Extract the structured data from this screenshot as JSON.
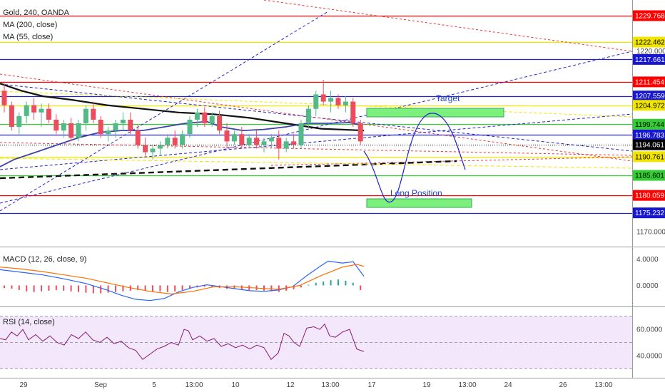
{
  "header": {
    "title": "Gold, 240, OANDA",
    "ma200": "MA (200, close)",
    "ma55": "MA (55, close)"
  },
  "annotations": {
    "target": "Target",
    "long_position": "Long Position"
  },
  "colors": {
    "up": "#53b987",
    "down": "#eb4d5c",
    "red_line": "#ff0000",
    "yellow_line": "#f2e600",
    "blue_line": "#2222cc",
    "green_line": "#33cc33",
    "ma200": "#111111",
    "ma55": "#3b44a8",
    "box_fill": "#7cf07c",
    "macd_line": "#2962ff",
    "signal_line": "#ff6d00",
    "rsi_line": "#8a1a72",
    "rsi_bg": "#f3e8fb"
  },
  "chart_data": [
    {
      "type": "candlestick",
      "title": "Gold, 240, OANDA",
      "x_ticks": [
        "29",
        "Sep",
        "5",
        "13:00",
        "10",
        "12",
        "13:00",
        "17",
        "19",
        "13:00",
        "24",
        "26",
        "13:00"
      ],
      "y_ticks": [
        1170.0,
        1220.0
      ],
      "y_tick_labels": [
        "1170.000",
        "1220.000"
      ],
      "ylim": [
        1165.9,
        1234.1
      ],
      "price_levels": [
        {
          "value": 1229.768,
          "label": "1229.768",
          "color": "red"
        },
        {
          "value": 1222.462,
          "label": "1222.462",
          "color": "yellow"
        },
        {
          "value": 1217.661,
          "label": "1217.661",
          "color": "blue"
        },
        {
          "value": 1211.454,
          "label": "1211.454",
          "color": "red"
        },
        {
          "value": 1207.559,
          "label": "1207.559",
          "color": "blue"
        },
        {
          "value": 1204.972,
          "label": "1204.972",
          "color": "yellow"
        },
        {
          "value": 1199.744,
          "label": "1199.744",
          "color": "green"
        },
        {
          "value": 1196.783,
          "label": "1196.783",
          "color": "blue"
        },
        {
          "value": 1194.061,
          "label": "1194.061",
          "color": "black"
        },
        {
          "value": 1190.761,
          "label": "1190.761",
          "color": "yellow"
        },
        {
          "value": 1185.601,
          "label": "1185.601",
          "color": "green"
        },
        {
          "value": 1180.059,
          "label": "1180.059",
          "color": "red"
        },
        {
          "value": 1175.232,
          "label": "1175.232",
          "color": "blue"
        }
      ],
      "candles": [
        [
          1209,
          1211.5,
          1203,
          1205
        ],
        [
          1205,
          1206,
          1198,
          1199
        ],
        [
          1199,
          1203,
          1197,
          1202
        ],
        [
          1202,
          1206,
          1200,
          1205
        ],
        [
          1205,
          1207,
          1201,
          1203
        ],
        [
          1203,
          1205.5,
          1199,
          1204
        ],
        [
          1204,
          1205.5,
          1200,
          1201
        ],
        [
          1201,
          1202.5,
          1197,
          1198
        ],
        [
          1198,
          1201,
          1196,
          1200
        ],
        [
          1200,
          1201.5,
          1195,
          1196
        ],
        [
          1196,
          1201,
          1195,
          1200
        ],
        [
          1200,
          1205,
          1198,
          1204
        ],
        [
          1204,
          1206,
          1200,
          1201
        ],
        [
          1201,
          1202,
          1196,
          1197
        ],
        [
          1197,
          1199,
          1195,
          1198
        ],
        [
          1198,
          1201,
          1196,
          1200
        ],
        [
          1200,
          1203,
          1198,
          1201
        ],
        [
          1201,
          1203,
          1197,
          1198
        ],
        [
          1198,
          1199.5,
          1193,
          1194
        ],
        [
          1194,
          1196,
          1191,
          1192
        ],
        [
          1192,
          1194,
          1190,
          1193
        ],
        [
          1193,
          1195,
          1191,
          1194
        ],
        [
          1194,
          1197,
          1193,
          1196
        ],
        [
          1196,
          1198,
          1193,
          1194
        ],
        [
          1194,
          1198,
          1193,
          1197
        ],
        [
          1197,
          1202,
          1196,
          1201
        ],
        [
          1201,
          1204,
          1199,
          1203
        ],
        [
          1203,
          1204.5,
          1199,
          1200
        ],
        [
          1200,
          1203,
          1199,
          1202
        ],
        [
          1202,
          1203.5,
          1197,
          1198
        ],
        [
          1198,
          1200,
          1193,
          1195
        ],
        [
          1195,
          1198,
          1194,
          1197
        ],
        [
          1197,
          1199,
          1193,
          1194
        ],
        [
          1194,
          1197,
          1193,
          1196
        ],
        [
          1196,
          1198,
          1193,
          1194
        ],
        [
          1194,
          1196,
          1192,
          1195
        ],
        [
          1195,
          1197,
          1193,
          1196
        ],
        [
          1196,
          1198,
          1190,
          1193
        ],
        [
          1193,
          1196,
          1192,
          1195
        ],
        [
          1195,
          1197,
          1193,
          1194
        ],
        [
          1194,
          1201,
          1193,
          1200
        ],
        [
          1200,
          1205,
          1199,
          1204
        ],
        [
          1204,
          1209,
          1202,
          1208
        ],
        [
          1208,
          1212,
          1205,
          1206
        ],
        [
          1206,
          1209,
          1203,
          1207
        ],
        [
          1207,
          1208,
          1204,
          1205
        ],
        [
          1205,
          1207.5,
          1203,
          1206
        ],
        [
          1206,
          1207,
          1199,
          1200
        ],
        [
          1200,
          1201,
          1194,
          1195
        ]
      ],
      "ma200": [
        [
          0,
          1211
        ],
        [
          30,
          1209
        ],
        [
          60,
          1207.5
        ],
        [
          100,
          1206.5
        ],
        [
          150,
          1205
        ],
        [
          200,
          1204
        ],
        [
          250,
          1203
        ],
        [
          300,
          1202.5
        ],
        [
          350,
          1201.5
        ],
        [
          400,
          1200
        ],
        [
          450,
          1198.5
        ],
        [
          510,
          1198
        ]
      ],
      "ma55": [
        [
          0,
          1188
        ],
        [
          20,
          1190
        ],
        [
          50,
          1192
        ],
        [
          80,
          1194
        ],
        [
          110,
          1196
        ],
        [
          140,
          1197.5
        ],
        [
          170,
          1198
        ],
        [
          200,
          1198
        ],
        [
          230,
          1199
        ],
        [
          260,
          1200
        ],
        [
          290,
          1200.5
        ],
        [
          310,
          1199
        ],
        [
          340,
          1198
        ],
        [
          370,
          1198.3
        ],
        [
          400,
          1199
        ],
        [
          430,
          1200
        ],
        [
          460,
          1200
        ],
        [
          490,
          1200.2
        ],
        [
          505,
          1199.5
        ]
      ]
    },
    {
      "type": "line",
      "title": "MACD (12, 26, close, 9)",
      "y_ticks": [
        4.0,
        0.0
      ],
      "y_tick_labels": [
        "4.0000",
        "0.0000"
      ],
      "ylim": [
        -3.2,
        5.8
      ],
      "series": [
        {
          "name": "MACD",
          "points": [
            [
              0,
              2.4
            ],
            [
              30,
              2.0
            ],
            [
              60,
              1.6
            ],
            [
              90,
              1.0
            ],
            [
              120,
              0.3
            ],
            [
              150,
              -0.7
            ],
            [
              170,
              -1.5
            ],
            [
              190,
              -2.1
            ],
            [
              210,
              -2.3
            ],
            [
              230,
              -2.0
            ],
            [
              250,
              -1.0
            ],
            [
              270,
              -0.3
            ],
            [
              290,
              0.1
            ],
            [
              310,
              -0.2
            ],
            [
              330,
              -0.5
            ],
            [
              350,
              -0.8
            ],
            [
              370,
              -0.9
            ],
            [
              390,
              -0.7
            ],
            [
              410,
              -0.2
            ],
            [
              430,
              1.5
            ],
            [
              450,
              3.0
            ],
            [
              460,
              3.7
            ],
            [
              480,
              3.4
            ],
            [
              495,
              3.6
            ],
            [
              510,
              1.4
            ]
          ]
        },
        {
          "name": "Signal",
          "points": [
            [
              0,
              2.8
            ],
            [
              30,
              2.5
            ],
            [
              60,
              2.1
            ],
            [
              90,
              1.6
            ],
            [
              120,
              1.1
            ],
            [
              150,
              0.4
            ],
            [
              180,
              -0.3
            ],
            [
              210,
              -0.9
            ],
            [
              240,
              -1.3
            ],
            [
              270,
              -0.9
            ],
            [
              300,
              -0.2
            ],
            [
              330,
              -0.2
            ],
            [
              360,
              -0.4
            ],
            [
              390,
              -0.6
            ],
            [
              420,
              0.0
            ],
            [
              450,
              1.5
            ],
            [
              480,
              2.8
            ],
            [
              500,
              3.2
            ],
            [
              510,
              2.9
            ]
          ]
        }
      ],
      "histogram": [
        -0.4,
        -0.5,
        -0.7,
        -0.9,
        -1.0,
        -0.9,
        -0.8,
        -0.7,
        -0.8,
        -0.9,
        -1.0,
        -1.1,
        -1.2,
        -1.2,
        -1.1,
        -1.0,
        -0.9,
        -0.8,
        -0.7,
        -0.8,
        -0.9,
        -0.9,
        -1.0,
        -0.9,
        -0.7,
        -0.5,
        -0.3,
        -0.2,
        -0.3,
        -0.4,
        -0.5,
        -0.5,
        -0.6,
        -0.7,
        -0.7,
        -0.8,
        -0.9,
        -1.0,
        -0.8,
        -0.6,
        -0.3,
        0.1,
        0.4,
        0.6,
        0.8,
        0.9,
        0.7,
        0.4,
        -0.7
      ]
    },
    {
      "type": "line",
      "title": "RSI (14, close)",
      "y_ticks": [
        60.0,
        40.0
      ],
      "y_tick_labels": [
        "60.0000",
        "40.0000"
      ],
      "ylim": [
        23,
        77
      ],
      "band": [
        30,
        70
      ],
      "series": [
        {
          "name": "RSI",
          "points": [
            [
              0,
              53
            ],
            [
              8,
              52
            ],
            [
              16,
              58
            ],
            [
              24,
              55
            ],
            [
              32,
              60
            ],
            [
              40,
              52
            ],
            [
              50,
              56
            ],
            [
              60,
              51
            ],
            [
              70,
              55
            ],
            [
              80,
              50
            ],
            [
              90,
              48
            ],
            [
              100,
              56
            ],
            [
              110,
              53
            ],
            [
              120,
              58
            ],
            [
              130,
              52
            ],
            [
              140,
              50
            ],
            [
              150,
              54
            ],
            [
              160,
              49
            ],
            [
              170,
              51
            ],
            [
              180,
              46
            ],
            [
              190,
              44
            ],
            [
              200,
              37
            ],
            [
              210,
              41
            ],
            [
              220,
              45
            ],
            [
              230,
              47
            ],
            [
              240,
              50
            ],
            [
              250,
              48
            ],
            [
              258,
              60
            ],
            [
              264,
              59
            ],
            [
              270,
              52
            ],
            [
              280,
              55
            ],
            [
              290,
              51
            ],
            [
              300,
              53
            ],
            [
              310,
              47
            ],
            [
              320,
              49
            ],
            [
              330,
              46
            ],
            [
              340,
              48
            ],
            [
              350,
              45
            ],
            [
              360,
              48
            ],
            [
              370,
              46
            ],
            [
              380,
              37
            ],
            [
              390,
              42
            ],
            [
              398,
              57
            ],
            [
              405,
              55
            ],
            [
              412,
              50
            ],
            [
              420,
              47
            ],
            [
              430,
              61
            ],
            [
              440,
              62
            ],
            [
              448,
              60
            ],
            [
              455,
              64
            ],
            [
              462,
              55
            ],
            [
              470,
              54
            ],
            [
              480,
              58
            ],
            [
              490,
              60
            ],
            [
              500,
              45
            ],
            [
              510,
              43
            ]
          ]
        }
      ]
    }
  ]
}
